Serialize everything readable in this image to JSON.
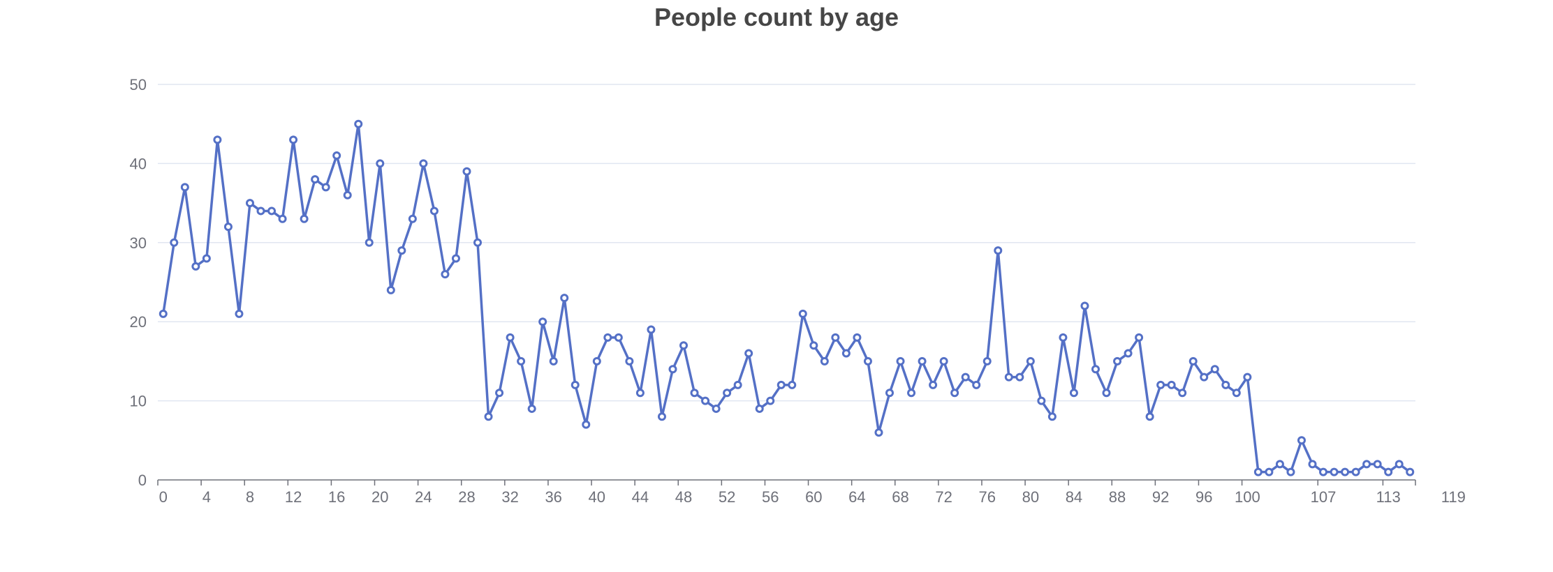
{
  "chart_data": {
    "type": "line",
    "title": "People count by age",
    "xlabel": "",
    "ylabel": "",
    "ylim": [
      0,
      50
    ],
    "yticks": [
      0,
      10,
      20,
      30,
      40,
      50
    ],
    "x_tick_labels": [
      "0",
      "4",
      "8",
      "12",
      "16",
      "20",
      "24",
      "28",
      "32",
      "36",
      "40",
      "44",
      "48",
      "52",
      "56",
      "60",
      "64",
      "68",
      "72",
      "76",
      "80",
      "84",
      "88",
      "92",
      "96",
      "100",
      "107",
      "113",
      "119"
    ],
    "grid": true,
    "legend": "none",
    "colors": {
      "line": "#5470c6",
      "grid": "#e0e6f1",
      "axis": "#6e7079",
      "marker_fill": "#ffffff"
    },
    "series": [
      {
        "values": [
          21,
          30,
          37,
          27,
          28,
          43,
          32,
          21,
          35,
          34,
          34,
          33,
          43,
          33,
          38,
          37,
          41,
          36,
          45,
          30,
          40,
          24,
          29,
          33,
          40,
          34,
          26,
          28,
          39,
          30,
          8,
          11,
          18,
          15,
          9,
          20,
          15,
          23,
          12,
          7,
          15,
          18,
          18,
          15,
          11,
          19,
          8,
          14,
          17,
          11,
          10,
          9,
          11,
          12,
          16,
          9,
          10,
          12,
          12,
          21,
          17,
          15,
          18,
          16,
          18,
          15,
          6,
          11,
          15,
          11,
          15,
          12,
          15,
          11,
          13,
          12,
          15,
          29,
          13,
          13,
          15,
          10,
          8,
          18,
          11,
          22,
          14,
          11,
          15,
          16,
          18,
          8,
          12,
          12,
          11,
          15,
          13,
          14,
          12,
          11,
          13,
          1,
          1,
          2,
          1,
          5,
          2,
          1,
          1,
          1,
          1,
          2,
          2,
          1,
          2,
          1
        ]
      }
    ]
  }
}
